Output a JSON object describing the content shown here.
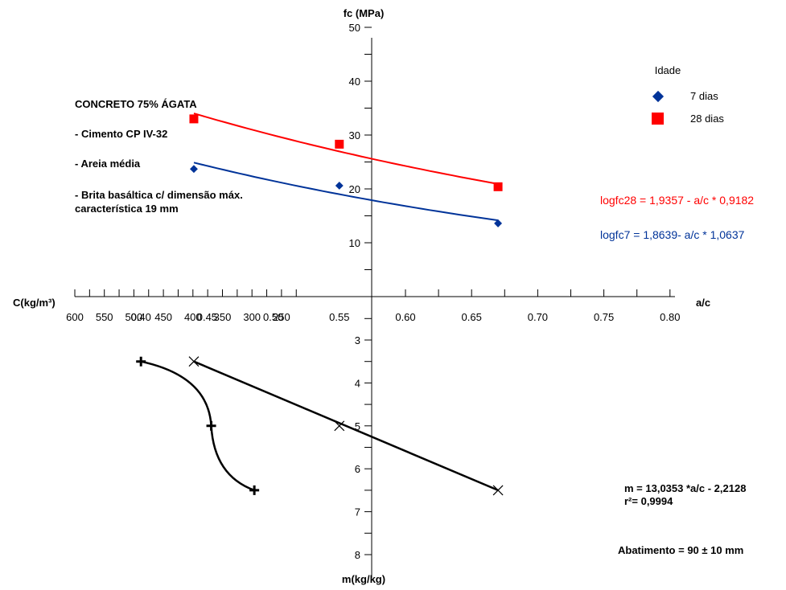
{
  "colors": {
    "red": "#ff0000",
    "blue": "#003399",
    "black": "#000000"
  },
  "notes": [
    "CONCRETO 75% ÁGATA",
    "- Cimento CP IV-32",
    "- Areia média",
    "- Brita basáltica c/ dimensão máx.",
    "característica 19 mm"
  ],
  "footer": {
    "m_equation": "m = 13,0353 *a/c - 2,2128",
    "r2": "r²= 0,9994",
    "abatimento": "Abatimento = 90 ± 10 mm"
  },
  "chart_data": {
    "type": "scatter",
    "legend": {
      "title": "Idade",
      "position": "top-right"
    },
    "quadrants": {
      "fc": {
        "ylabel": "fc (MPa)",
        "xlabel": "a/c",
        "xlim": [
          0.35,
          0.8
        ],
        "ylim": [
          0,
          50
        ],
        "x_ticks": [
          "0.40",
          "0.45",
          "0.50",
          "0.55",
          "0.60",
          "0.65",
          "0.70",
          "0.75",
          "0.80"
        ],
        "y_ticks": [
          "10",
          "20",
          "30",
          "40",
          "50"
        ],
        "series": [
          {
            "name": "7 dias",
            "marker": "diamond",
            "color": "#003399",
            "points": [
              [
                0.44,
                23.7
              ],
              [
                0.55,
                20.6
              ],
              [
                0.67,
                13.6
              ]
            ],
            "fit_label": "logfc7 = 1,8639- a/c * 1,0637",
            "fit": {
              "a": 1.8639,
              "b": 1.0637,
              "x_range": [
                0.44,
                0.67
              ]
            }
          },
          {
            "name": "28 dias",
            "marker": "square",
            "color": "#ff0000",
            "points": [
              [
                0.44,
                33.0
              ],
              [
                0.55,
                28.3
              ],
              [
                0.67,
                20.4
              ]
            ],
            "fit_label": "logfc28 = 1,9357 - a/c * 0,9182",
            "fit": {
              "a": 1.9357,
              "b": 0.9182,
              "x_range": [
                0.44,
                0.67
              ]
            }
          }
        ]
      },
      "m": {
        "ylabel": "m(kg/kg)",
        "xlabel": "a/c",
        "ylim": [
          2.5,
          8
        ],
        "y_ticks": [
          "3",
          "4",
          "5",
          "6",
          "7",
          "8"
        ],
        "points": [
          [
            0.44,
            3.5
          ],
          [
            0.55,
            5.0
          ],
          [
            0.67,
            6.5
          ]
        ]
      },
      "C": {
        "xlabel": "C(kg/m³)",
        "xlim": [
          200,
          600
        ],
        "x_ticks": [
          "600",
          "550",
          "500",
          "450",
          "400",
          "350",
          "300",
          "250"
        ],
        "points": [
          [
            488,
            3.5
          ],
          [
            369,
            5.0
          ],
          [
            296,
            6.5
          ]
        ]
      }
    }
  }
}
